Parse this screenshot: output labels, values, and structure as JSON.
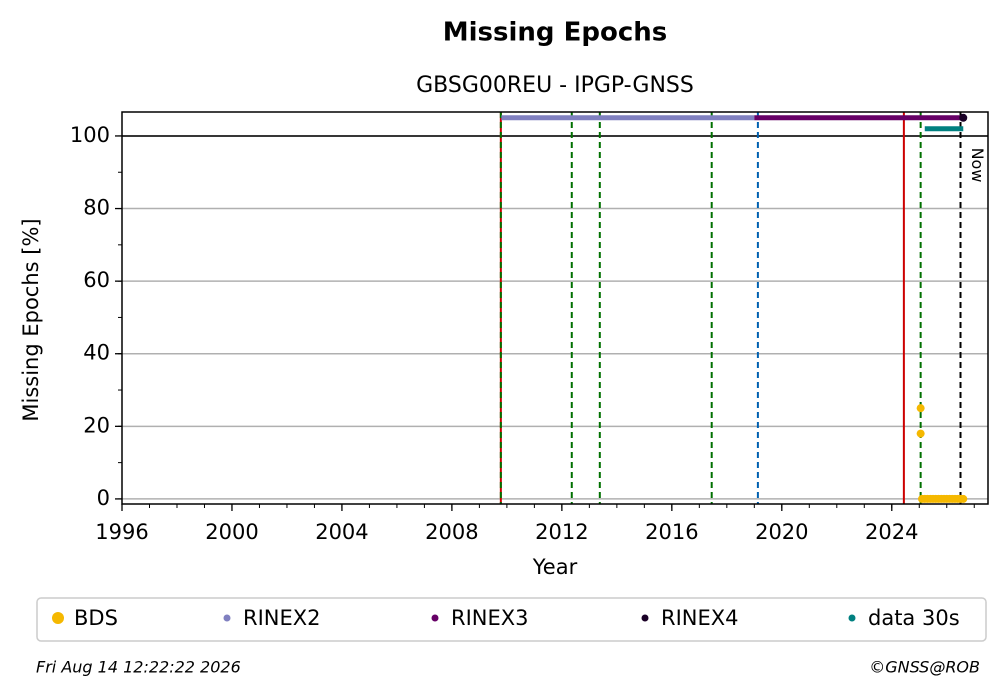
{
  "chart_data": {
    "type": "scatter",
    "title": "Missing Epochs",
    "subtitle": "GBSG00REU - IPGP-GNSS",
    "xlabel": "Year",
    "ylabel": "Missing Epochs [%]",
    "xlim": [
      1996,
      2027.5
    ],
    "ylim": [
      -1.4,
      106.6
    ],
    "xticks": [
      1996,
      2000,
      2004,
      2008,
      2012,
      2016,
      2020,
      2024
    ],
    "yticks": [
      0,
      20,
      40,
      60,
      80,
      100
    ],
    "xminor": 1,
    "yminor": 10,
    "grid": true,
    "hline": 100,
    "series": [
      {
        "name": "BDS",
        "color": "#f5b800",
        "line": false,
        "x": [
          2025.05,
          2025.05,
          2025.1,
          2025.2,
          2025.3,
          2025.4,
          2025.5,
          2025.6,
          2025.7,
          2025.8,
          2025.9,
          2026.0,
          2026.1,
          2026.2,
          2026.3,
          2026.4,
          2026.5,
          2026.6
        ],
        "values": [
          25,
          18,
          0,
          0,
          0,
          0,
          0,
          0,
          0,
          0,
          0,
          0,
          0,
          0,
          0,
          0,
          0,
          0
        ]
      },
      {
        "name": "RINEX2",
        "color": "#8080c0",
        "line": true,
        "x": [
          2009.8,
          2019.0
        ],
        "values": [
          105,
          105
        ]
      },
      {
        "name": "RINEX3",
        "color": "#660066",
        "line": true,
        "x": [
          2019.0,
          2026.6
        ],
        "values": [
          105,
          105
        ]
      },
      {
        "name": "RINEX4",
        "color": "#1a0026",
        "line": false,
        "x": [
          2026.6
        ],
        "values": [
          105
        ]
      },
      {
        "name": "data 30s",
        "color": "#008080",
        "line": true,
        "x": [
          2025.2,
          2026.6
        ],
        "values": [
          102,
          102
        ]
      }
    ],
    "vlines": [
      {
        "x": 2009.78,
        "color": "#cc0000",
        "dash": false
      },
      {
        "x": 2009.78,
        "color": "#007000",
        "dash": true
      },
      {
        "x": 2012.36,
        "color": "#007000",
        "dash": true
      },
      {
        "x": 2013.38,
        "color": "#007000",
        "dash": true
      },
      {
        "x": 2017.45,
        "color": "#007000",
        "dash": true
      },
      {
        "x": 2019.13,
        "color": "#0060b0",
        "dash": true
      },
      {
        "x": 2024.44,
        "color": "#cc0000",
        "dash": false
      },
      {
        "x": 2025.05,
        "color": "#007000",
        "dash": true
      },
      {
        "x": 2026.5,
        "color": "#000000",
        "dash": true,
        "label": "Now"
      }
    ],
    "footer_left": "Fri Aug 14 12:22:22 2026",
    "footer_right": "©GNSS@ROB"
  }
}
